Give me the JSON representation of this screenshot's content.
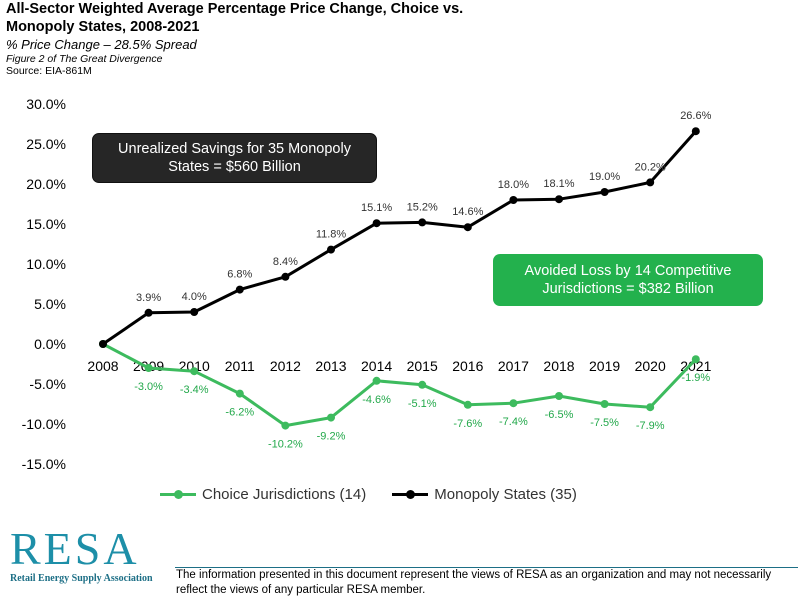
{
  "header": {
    "title": "All-Sector Weighted Average Percentage Price Change, Choice vs. Monopoly States, 2008-2021",
    "subtitle": "% Price Change – 28.5% Spread",
    "figure_note": "Figure 2 of The Great Divergence",
    "source": "Source: EIA-861M"
  },
  "chart_data": {
    "type": "line",
    "x": [
      "2008",
      "2009",
      "2010",
      "2011",
      "2012",
      "2013",
      "2014",
      "2015",
      "2016",
      "2017",
      "2018",
      "2019",
      "2020",
      "2021"
    ],
    "ylim": [
      -15,
      30
    ],
    "yticks": [
      30,
      25,
      20,
      15,
      10,
      5,
      0,
      -5,
      -10,
      -15
    ],
    "ytick_labels": [
      "30.0%",
      "25.0%",
      "20.0%",
      "15.0%",
      "10.0%",
      "5.0%",
      "0.0%",
      "-5.0%",
      "-10.0%",
      "-15.0%"
    ],
    "grid": false,
    "legend_position": "bottom",
    "series": [
      {
        "name": "Choice Jurisdictions (14)",
        "color": "#3dbb5e",
        "values": [
          0.0,
          -3.0,
          -3.4,
          -6.2,
          -10.2,
          -9.2,
          -4.6,
          -5.1,
          -7.6,
          -7.4,
          -6.5,
          -7.5,
          -7.9,
          -1.9
        ],
        "labels": [
          "",
          "-3.0%",
          "-3.4%",
          "-6.2%",
          "-10.2%",
          "-9.2%",
          "-4.6%",
          "-5.1%",
          "-7.6%",
          "-7.4%",
          "-6.5%",
          "-7.5%",
          "-7.9%",
          "-1.9%"
        ]
      },
      {
        "name": "Monopoly States (35)",
        "color": "#000000",
        "values": [
          0.0,
          3.9,
          4.0,
          6.8,
          8.4,
          11.8,
          15.1,
          15.2,
          14.6,
          18.0,
          18.1,
          19.0,
          20.2,
          26.6
        ],
        "labels": [
          "",
          "3.9%",
          "4.0%",
          "6.8%",
          "8.4%",
          "11.8%",
          "15.1%",
          "15.2%",
          "14.6%",
          "18.0%",
          "18.1%",
          "19.0%",
          "20.2%",
          "26.6%"
        ]
      }
    ],
    "annotations": {
      "monopoly_callout": "Unrealized Savings for 35 Monopoly States = $560 Billion",
      "choice_callout": "Avoided Loss by 14 Competitive Jurisdictions = $382 Billion"
    }
  },
  "legend": {
    "choice_label": "Choice Jurisdictions (14)",
    "monopoly_label": "Monopoly States (35)"
  },
  "footer": {
    "logo_text": "RESA",
    "logo_subtitle": "Retail Energy Supply Association",
    "disclaimer": "The information presented in this document represent the views of RESA as an organization and may not necessarily reflect the views of any particular RESA member."
  }
}
